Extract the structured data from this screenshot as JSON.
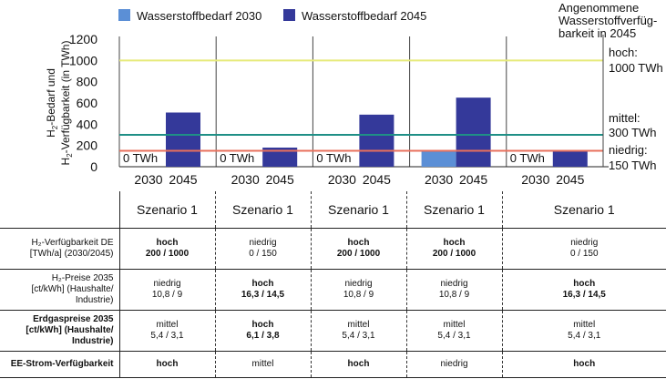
{
  "chart_data": {
    "type": "bar",
    "ylabel_main": "H",
    "ylabel_sub": "2",
    "ylabel_line1": "-Bedarf und",
    "ylabel_line2a": "H",
    "ylabel_line2b": "2",
    "ylabel_line2c": "-Verfügbarkeit (in TWh)",
    "ylim": [
      0,
      1200
    ],
    "yticks": [
      "0",
      "200",
      "400",
      "600",
      "800",
      "1000",
      "1200"
    ],
    "yticks_values": [
      0,
      200,
      400,
      600,
      800,
      1000,
      1200
    ],
    "legend": [
      {
        "name": "Wasserstoffbedarf 2030",
        "color": "#5b8fd6"
      },
      {
        "name": "Wasserstoffbedarf 2045",
        "color": "#34399a"
      }
    ],
    "groups": [
      {
        "bars": [
          {
            "year": "2030",
            "value": 0,
            "label": "0 TWh"
          },
          {
            "year": "2045",
            "value": 510
          }
        ]
      },
      {
        "bars": [
          {
            "year": "2030",
            "value": 0,
            "label": "0 TWh"
          },
          {
            "year": "2045",
            "value": 180
          }
        ]
      },
      {
        "bars": [
          {
            "year": "2030",
            "value": 0,
            "label": "0 TWh"
          },
          {
            "year": "2045",
            "value": 490
          }
        ]
      },
      {
        "bars": [
          {
            "year": "2030",
            "value": 150
          },
          {
            "year": "2045",
            "value": 650
          }
        ]
      },
      {
        "bars": [
          {
            "year": "2030",
            "value": 0,
            "label": "0 TWh"
          },
          {
            "year": "2045",
            "value": 150
          }
        ]
      }
    ],
    "reference_lines": [
      {
        "value": 1000,
        "color": "#e6ea7a",
        "label1": "hoch:",
        "label2": "1000 TWh"
      },
      {
        "value": 300,
        "color": "#1f8f86",
        "label1": "mittel:",
        "label2": "300 TWh"
      },
      {
        "value": 150,
        "color": "#e8705c",
        "label1": "niedrig:",
        "label2": "150 TWh"
      }
    ],
    "availability_title": [
      "Angenommene",
      "Wasserstoffverfüg-",
      "barkeit in 2045"
    ]
  },
  "table": {
    "scenarios": [
      "Szenario 1",
      "Szenario 1",
      "Szenario 1",
      "Szenario 1",
      "Szenario 1"
    ],
    "rows": [
      {
        "label": [
          "H₂-Verfügbarkeit DE",
          "[TWh/a] (2030/2045)"
        ],
        "label_bold": false,
        "cells": [
          {
            "level": "hoch",
            "values": "200 / 1000",
            "bold": true
          },
          {
            "level": "niedrig",
            "values": "0 / 150",
            "bold": false
          },
          {
            "level": "hoch",
            "values": "200 / 1000",
            "bold": true
          },
          {
            "level": "hoch",
            "values": "200 / 1000",
            "bold": true
          },
          {
            "level": "niedrig",
            "values": "0 / 150",
            "bold": false
          }
        ]
      },
      {
        "label": [
          "H₂-Preise 2035",
          "[ct/kWh] (Haushalte/",
          "Industrie)"
        ],
        "label_bold": false,
        "cells": [
          {
            "level": "niedrig",
            "values": "10,8 / 9",
            "bold": false
          },
          {
            "level": "hoch",
            "values": "16,3 / 14,5",
            "bold": true
          },
          {
            "level": "niedrig",
            "values": "10,8 / 9",
            "bold": false
          },
          {
            "level": "niedrig",
            "values": "10,8 / 9",
            "bold": false
          },
          {
            "level": "hoch",
            "values": "16,3 / 14,5",
            "bold": true
          }
        ]
      },
      {
        "label": [
          "Erdgaspreise 2035",
          "[ct/kWh] (Haushalte/",
          "Industrie)"
        ],
        "label_bold": true,
        "cells": [
          {
            "level": "mittel",
            "values": "5,4 / 3,1",
            "bold": false
          },
          {
            "level": "hoch",
            "values": "6,1 / 3,8",
            "bold": true
          },
          {
            "level": "mittel",
            "values": "5,4 / 3,1",
            "bold": false
          },
          {
            "level": "mittel",
            "values": "5,4 / 3,1",
            "bold": false
          },
          {
            "level": "mittel",
            "values": "5,4 / 3,1",
            "bold": false
          }
        ]
      },
      {
        "label": [
          "EE-Strom-Verfügbarkeit"
        ],
        "label_bold": true,
        "cells": [
          {
            "level": "hoch",
            "values": "",
            "bold": true
          },
          {
            "level": "mittel",
            "values": "",
            "bold": false
          },
          {
            "level": "hoch",
            "values": "",
            "bold": true
          },
          {
            "level": "niedrig",
            "values": "",
            "bold": false
          },
          {
            "level": "hoch",
            "values": "",
            "bold": true
          }
        ]
      }
    ]
  }
}
